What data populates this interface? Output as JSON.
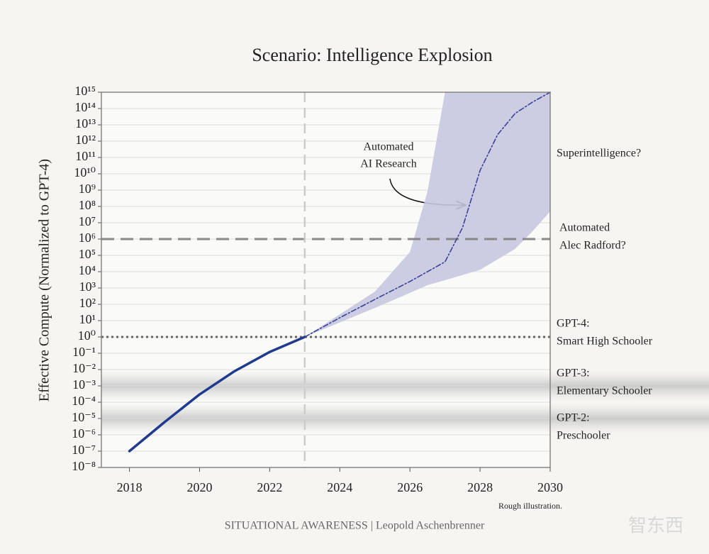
{
  "chart_data": {
    "type": "line",
    "title": "Scenario: Intelligence Explosion",
    "y_label": "Effective Compute (Normalized to GPT-4)",
    "y_scale": "log",
    "grid": true,
    "xlim": [
      2017.2,
      2030
    ],
    "xticks": [
      2018,
      2020,
      2022,
      2024,
      2026,
      2028,
      2030
    ],
    "ylim": [
      1e-08,
      1000000000000000.0
    ],
    "yticks": [
      {
        "value": 1e-08,
        "label": "10⁻⁸"
      },
      {
        "value": 1e-07,
        "label": "10⁻⁷"
      },
      {
        "value": 1e-06,
        "label": "10⁻⁶"
      },
      {
        "value": 1e-05,
        "label": "10⁻⁵"
      },
      {
        "value": 0.0001,
        "label": "10⁻⁴"
      },
      {
        "value": 0.001,
        "label": "10⁻³"
      },
      {
        "value": 0.01,
        "label": "10⁻²"
      },
      {
        "value": 0.1,
        "label": "10⁻¹"
      },
      {
        "value": 1,
        "label": "10⁰"
      },
      {
        "value": 10,
        "label": "10¹"
      },
      {
        "value": 100,
        "label": "10²"
      },
      {
        "value": 1000,
        "label": "10³"
      },
      {
        "value": 10000.0,
        "label": "10⁴"
      },
      {
        "value": 100000.0,
        "label": "10⁵"
      },
      {
        "value": 1000000.0,
        "label": "10⁶"
      },
      {
        "value": 10000000.0,
        "label": "10⁷"
      },
      {
        "value": 100000000.0,
        "label": "10⁸"
      },
      {
        "value": 1000000000.0,
        "label": "10⁹"
      },
      {
        "value": 10000000000.0,
        "label": "10¹⁰"
      },
      {
        "value": 100000000000.0,
        "label": "10¹¹"
      },
      {
        "value": 1000000000000.0,
        "label": "10¹²"
      },
      {
        "value": 10000000000000.0,
        "label": "10¹³"
      },
      {
        "value": 100000000000000.0,
        "label": "10¹⁴"
      },
      {
        "value": 1000000000000000.0,
        "label": "10¹⁵"
      }
    ],
    "series": [
      {
        "color": "#1f3a8f",
        "style": "solid",
        "x": [
          2018,
          2019,
          2020,
          2021,
          2022,
          2023
        ],
        "values": [
          1e-07,
          6e-06,
          0.0003,
          0.008,
          0.12,
          1
        ]
      },
      {
        "color": "#3d4199",
        "style": "dashdot",
        "x": [
          2023,
          2024,
          2025,
          2026,
          2027,
          2027.5,
          2028,
          2028.5,
          2029,
          2029.5,
          2030
        ],
        "values": [
          1,
          15,
          200,
          2500,
          40000,
          5000000,
          16000000000,
          2500000000000,
          50000000000000,
          250000000000000,
          1000000000000000.0
        ]
      }
    ],
    "band": {
      "color": "#c6c8df",
      "x": [
        2023,
        2025,
        2026,
        2026.5,
        2027,
        2028,
        2029,
        2029.5,
        2030
      ],
      "lower": [
        1,
        60,
        500,
        1500,
        3000,
        13000,
        250000,
        3000000,
        50000000
      ],
      "upper": [
        1,
        600,
        160000,
        800000000,
        1000000000000000.0,
        1000000000000000.0,
        1000000000000000.0,
        1000000000000000.0,
        1000000000000000.0
      ]
    },
    "reference_lines": [
      {
        "y": 1000000,
        "style": "dashed"
      },
      {
        "y": 1,
        "style": "dotted"
      },
      {
        "x": 2023,
        "style": "dashed"
      }
    ],
    "shaded_levels": [
      0.001,
      1e-05
    ],
    "right_labels": [
      [
        "Superintelligence?"
      ],
      [
        "Automated",
        "Alec Radford?"
      ],
      [
        "GPT-4:",
        "Smart High Schooler"
      ],
      [
        "GPT-3:",
        "Elementary Schooler"
      ],
      [
        "GPT-2:",
        "Preschooler"
      ]
    ],
    "annotation": [
      "Automated",
      "AI Research"
    ],
    "note": "Rough illustration.",
    "source": "SITUATIONAL AWARENESS | Leopold Aschenbrenner",
    "watermark": "智东西"
  }
}
